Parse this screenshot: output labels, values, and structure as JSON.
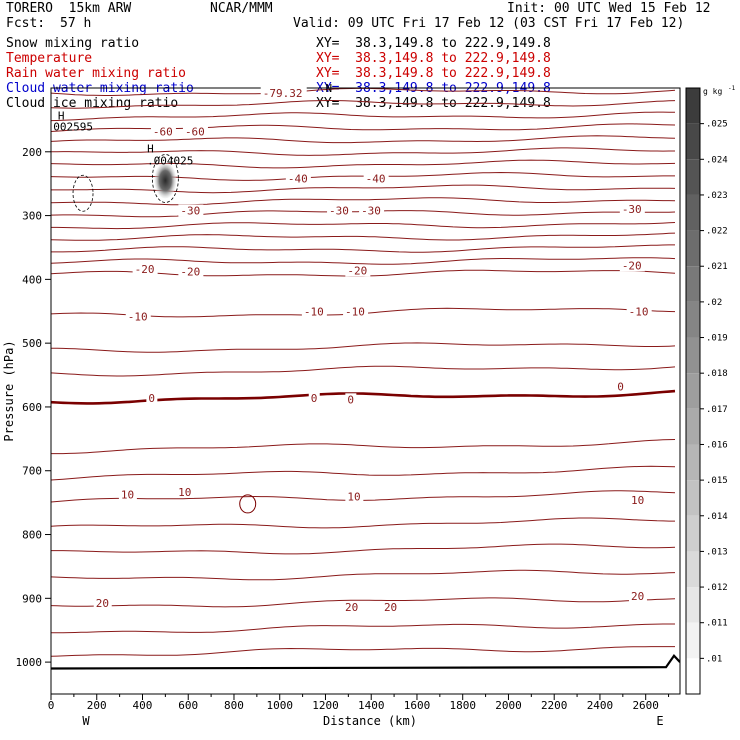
{
  "header": {
    "model": "TORERO  15km ARW",
    "org": "NCAR/MMM",
    "init": "Init: 00 UTC Wed 15 Feb 12",
    "fcst_label": "Fcst:",
    "fcst_value": "57 h",
    "valid": "Valid: 09 UTC Fri 17 Feb 12 (03 CST Fri 17 Feb 12)",
    "fields": [
      {
        "name": "Snow mixing ratio",
        "xy": "XY=  38.3,149.8 to 222.9,149.8",
        "color": "#000000"
      },
      {
        "name": "Temperature",
        "xy": "XY=  38.3,149.8 to 222.9,149.8",
        "color": "#cc0000"
      },
      {
        "name": "Rain water mixing ratio",
        "xy": "XY=  38.3,149.8 to 222.9,149.8",
        "color": "#cc0000"
      },
      {
        "name": "Cloud water mixing ratio",
        "xy": "XY=  38.3,149.8 to 222.9,149.8",
        "color": "#0000cc"
      },
      {
        "name": "Cloud ice mixing ratio",
        "xy": "XY=  38.3,149.8 to 222.9,149.8",
        "color": "#000000"
      }
    ]
  },
  "chart_data": {
    "type": "contour",
    "ylabel": "Pressure (hPa)",
    "xlabel": "Distance (km)",
    "x_left_label": "W",
    "x_right_label": "E",
    "xlim": [
      0,
      2750
    ],
    "ylim": [
      100,
      1050
    ],
    "y_inverted": true,
    "x_ticks": [
      0,
      200,
      400,
      600,
      800,
      1000,
      1200,
      1400,
      1600,
      1800,
      2000,
      2200,
      2400,
      2600
    ],
    "y_ticks": [
      200,
      300,
      400,
      500,
      600,
      700,
      800,
      900,
      1000
    ],
    "colorbar": {
      "unit": "g kg",
      "unit_exp": "-1",
      "tick_labels": [
        ".025",
        ".024",
        ".023",
        ".022",
        ".021",
        ".02",
        ".019",
        ".018",
        ".017",
        ".016",
        ".015",
        ".014",
        ".013",
        ".012",
        ".011",
        ".01"
      ],
      "min": 0.009,
      "max": 0.026
    },
    "temperature_labels": [
      {
        "text": "-79.32",
        "x": 930,
        "p": 108
      },
      {
        "text": "-60",
        "x": 450,
        "p": 168
      },
      {
        "text": "-60",
        "x": 590,
        "p": 168
      },
      {
        "text": "-40",
        "x": 1040,
        "p": 242
      },
      {
        "text": "-40",
        "x": 1380,
        "p": 242
      },
      {
        "text": "-30",
        "x": 570,
        "p": 292
      },
      {
        "text": "-30",
        "x": 1220,
        "p": 292
      },
      {
        "text": "-30",
        "x": 1360,
        "p": 292
      },
      {
        "text": "-30",
        "x": 2500,
        "p": 290
      },
      {
        "text": "-20",
        "x": 370,
        "p": 384
      },
      {
        "text": "-20",
        "x": 570,
        "p": 388
      },
      {
        "text": "-20",
        "x": 1300,
        "p": 386
      },
      {
        "text": "-20",
        "x": 2500,
        "p": 378
      },
      {
        "text": "-10",
        "x": 340,
        "p": 458
      },
      {
        "text": "-10",
        "x": 1110,
        "p": 450
      },
      {
        "text": "-10",
        "x": 1290,
        "p": 450
      },
      {
        "text": "-10",
        "x": 2530,
        "p": 450
      },
      {
        "text": "0",
        "x": 430,
        "p": 586
      },
      {
        "text": "0",
        "x": 1140,
        "p": 586
      },
      {
        "text": "0",
        "x": 1300,
        "p": 588
      },
      {
        "text": "0",
        "x": 2480,
        "p": 568
      },
      {
        "text": "10",
        "x": 310,
        "p": 737
      },
      {
        "text": "10",
        "x": 560,
        "p": 733
      },
      {
        "text": "10",
        "x": 1300,
        "p": 740
      },
      {
        "text": "10",
        "x": 2540,
        "p": 746
      },
      {
        "text": "20",
        "x": 200,
        "p": 907
      },
      {
        "text": "20",
        "x": 1290,
        "p": 914
      },
      {
        "text": "20",
        "x": 1460,
        "p": 914
      },
      {
        "text": "20",
        "x": 2540,
        "p": 896
      }
    ],
    "other_labels": [
      {
        "text": "H",
        "x": 30,
        "p": 149
      },
      {
        "text": "002595",
        "x": 10,
        "p": 167
      },
      {
        "text": "H",
        "x": 420,
        "p": 201
      },
      {
        "text": ".004025",
        "x": 420,
        "p": 220
      },
      {
        "text": "N",
        "x": 1200,
        "p": 106
      }
    ],
    "snow_max_center": {
      "x": 500,
      "p": 245,
      "value": 0.026
    }
  }
}
